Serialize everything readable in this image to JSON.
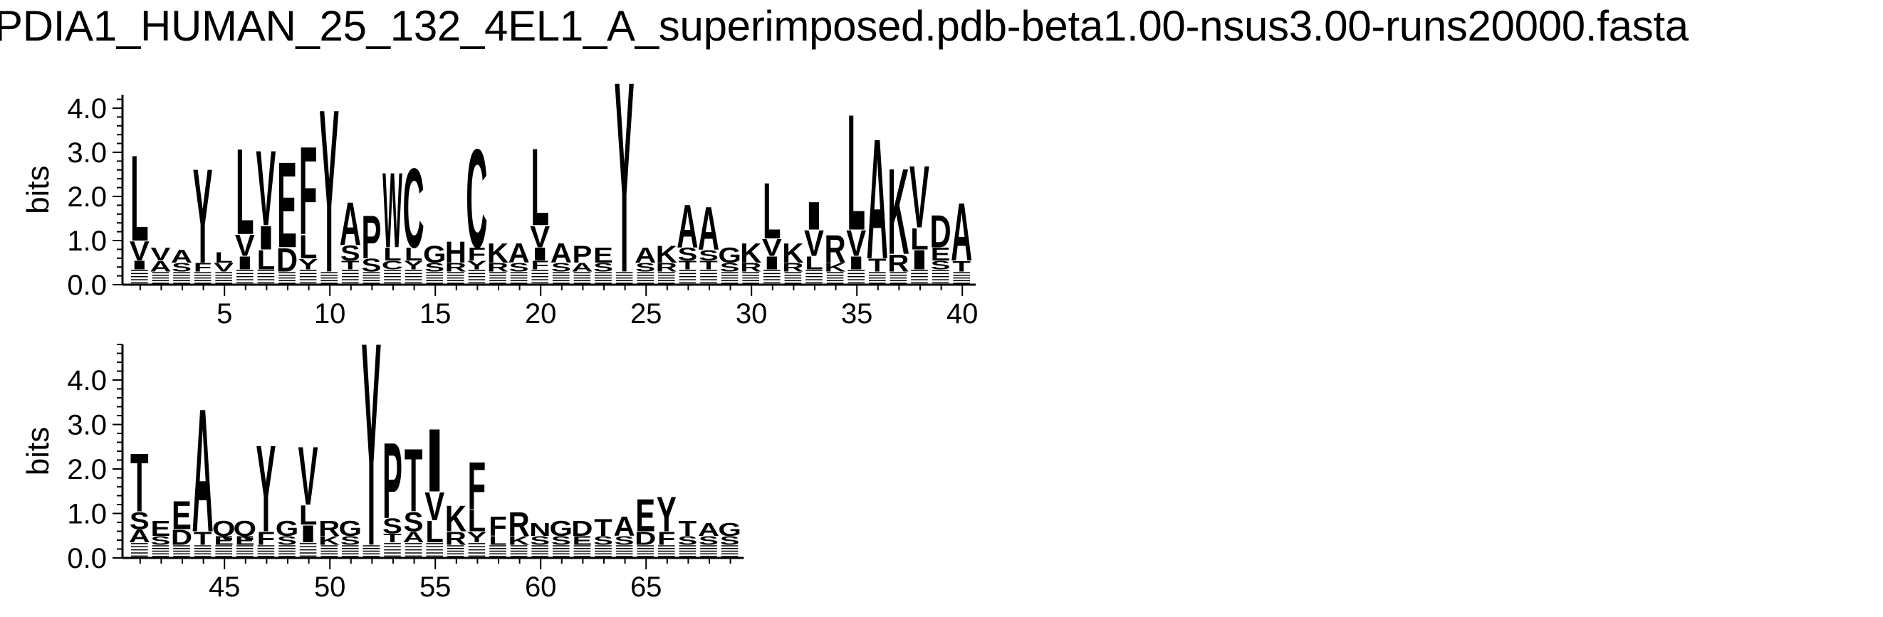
{
  "title": "PDIA1_HUMAN_25_132_4EL1_A_superimposed.pdb-beta1.00-nsus3.00-runs20000.fasta",
  "chart_data": [
    {
      "type": "sequence-logo",
      "ylabel": "bits",
      "ylim": [
        0,
        4.3
      ],
      "yticks": [
        "0.0",
        "1.0",
        "2.0",
        "3.0",
        "4.0"
      ],
      "xlim": [
        1,
        40
      ],
      "xticks": [
        5,
        10,
        15,
        20,
        25,
        30,
        35,
        40
      ],
      "positions": [
        {
          "pos": 1,
          "letters": [
            [
              "L",
              2.0
            ],
            [
              "V",
              0.45
            ],
            [
              "I",
              0.2
            ]
          ]
        },
        {
          "pos": 2,
          "letters": [
            [
              "V",
              0.3
            ],
            [
              "A",
              0.25
            ]
          ]
        },
        {
          "pos": 3,
          "letters": [
            [
              "A",
              0.3
            ],
            [
              "S",
              0.2
            ]
          ]
        },
        {
          "pos": 4,
          "letters": [
            [
              "Y",
              2.2
            ],
            [
              "F",
              0.2
            ]
          ]
        },
        {
          "pos": 5,
          "letters": [
            [
              "L",
              0.25
            ],
            [
              "V",
              0.2
            ]
          ]
        },
        {
          "pos": 6,
          "letters": [
            [
              "L",
              2.0
            ],
            [
              "V",
              0.5
            ],
            [
              "I",
              0.3
            ]
          ]
        },
        {
          "pos": 7,
          "letters": [
            [
              "V",
              1.75
            ],
            [
              "I",
              0.55
            ],
            [
              "L",
              0.45
            ]
          ]
        },
        {
          "pos": 8,
          "letters": [
            [
              "E",
              2.0
            ],
            [
              "D",
              0.55
            ]
          ]
        },
        {
          "pos": 9,
          "letters": [
            [
              "F",
              2.05
            ],
            [
              "L",
              0.55
            ],
            [
              "Y",
              0.25
            ]
          ]
        },
        {
          "pos": 10,
          "letters": [
            [
              "Y",
              3.8
            ]
          ]
        },
        {
          "pos": 11,
          "letters": [
            [
              "A",
              1.0
            ],
            [
              "S",
              0.35
            ],
            [
              "T",
              0.2
            ]
          ]
        },
        {
          "pos": 12,
          "letters": [
            [
              "P",
              1.0
            ],
            [
              "S",
              0.3
            ]
          ]
        },
        {
          "pos": 13,
          "letters": [
            [
              "W",
              1.75
            ],
            [
              "L",
              0.3
            ],
            [
              "C",
              0.2
            ]
          ]
        },
        {
          "pos": 14,
          "letters": [
            [
              "C",
              1.85
            ],
            [
              "L",
              0.3
            ],
            [
              "Y",
              0.2
            ]
          ]
        },
        {
          "pos": 15,
          "letters": [
            [
              "G",
              0.4
            ],
            [
              "S",
              0.2
            ]
          ]
        },
        {
          "pos": 16,
          "letters": [
            [
              "H",
              0.5
            ],
            [
              "R",
              0.2
            ]
          ]
        },
        {
          "pos": 17,
          "letters": [
            [
              "C",
              2.3
            ],
            [
              "F",
              0.3
            ],
            [
              "Y",
              0.2
            ]
          ]
        },
        {
          "pos": 18,
          "letters": [
            [
              "K",
              0.45
            ],
            [
              "R",
              0.2
            ]
          ]
        },
        {
          "pos": 19,
          "letters": [
            [
              "A",
              0.45
            ],
            [
              "S",
              0.2
            ]
          ]
        },
        {
          "pos": 20,
          "letters": [
            [
              "L",
              1.8
            ],
            [
              "V",
              0.5
            ],
            [
              "I",
              0.3
            ],
            [
              "F",
              0.2
            ]
          ]
        },
        {
          "pos": 21,
          "letters": [
            [
              "A",
              0.45
            ],
            [
              "S",
              0.2
            ]
          ]
        },
        {
          "pos": 22,
          "letters": [
            [
              "P",
              0.4
            ],
            [
              "A",
              0.2
            ]
          ]
        },
        {
          "pos": 23,
          "letters": [
            [
              "E",
              0.35
            ],
            [
              "S",
              0.2
            ]
          ]
        },
        {
          "pos": 24,
          "letters": [
            [
              "Y",
              4.45
            ]
          ]
        },
        {
          "pos": 25,
          "letters": [
            [
              "A",
              0.35
            ],
            [
              "S",
              0.2
            ]
          ]
        },
        {
          "pos": 26,
          "letters": [
            [
              "K",
              0.4
            ],
            [
              "R",
              0.2
            ]
          ]
        },
        {
          "pos": 27,
          "letters": [
            [
              "A",
              1.0
            ],
            [
              "S",
              0.3
            ],
            [
              "T",
              0.2
            ]
          ]
        },
        {
          "pos": 28,
          "letters": [
            [
              "A",
              1.0
            ],
            [
              "S",
              0.25
            ],
            [
              "T",
              0.2
            ]
          ]
        },
        {
          "pos": 29,
          "letters": [
            [
              "G",
              0.35
            ],
            [
              "S",
              0.2
            ]
          ]
        },
        {
          "pos": 30,
          "letters": [
            [
              "K",
              0.45
            ],
            [
              "R",
              0.2
            ]
          ]
        },
        {
          "pos": 31,
          "letters": [
            [
              "L",
              1.3
            ],
            [
              "V",
              0.4
            ],
            [
              "I",
              0.3
            ]
          ]
        },
        {
          "pos": 32,
          "letters": [
            [
              "K",
              0.45
            ],
            [
              "R",
              0.2
            ]
          ]
        },
        {
          "pos": 33,
          "letters": [
            [
              "I",
              0.65
            ],
            [
              "V",
              0.6
            ],
            [
              "L",
              0.3
            ]
          ]
        },
        {
          "pos": 34,
          "letters": [
            [
              "R",
              0.65
            ],
            [
              "K",
              0.2
            ]
          ]
        },
        {
          "pos": 35,
          "letters": [
            [
              "L",
              2.7
            ],
            [
              "V",
              0.6
            ],
            [
              "I",
              0.3
            ]
          ]
        },
        {
          "pos": 36,
          "letters": [
            [
              "A",
              2.8
            ],
            [
              "T",
              0.3
            ]
          ]
        },
        {
          "pos": 37,
          "letters": [
            [
              "K",
              2.0
            ],
            [
              "R",
              0.4
            ]
          ]
        },
        {
          "pos": 38,
          "letters": [
            [
              "V",
              1.45
            ],
            [
              "I",
              0.45
            ],
            [
              "L",
              0.5
            ]
          ]
        },
        {
          "pos": 39,
          "letters": [
            [
              "D",
              0.75
            ],
            [
              "E",
              0.3
            ],
            [
              "S",
              0.2
            ]
          ]
        },
        {
          "pos": 40,
          "letters": [
            [
              "A",
              1.35
            ],
            [
              "T",
              0.25
            ]
          ]
        }
      ]
    },
    {
      "type": "sequence-logo",
      "ylabel": "bits",
      "ylim": [
        0,
        4.8
      ],
      "yticks": [
        "0.0",
        "1.0",
        "2.0",
        "3.0",
        "4.0"
      ],
      "xlim": [
        41,
        69
      ],
      "xticks": [
        45,
        50,
        55,
        60,
        65
      ],
      "positions": [
        {
          "pos": 41,
          "letters": [
            [
              "T",
              1.35
            ],
            [
              "S",
              0.4
            ],
            [
              "A",
              0.3
            ]
          ]
        },
        {
          "pos": 42,
          "letters": [
            [
              "E",
              0.35
            ],
            [
              "S",
              0.2
            ]
          ]
        },
        {
          "pos": 43,
          "letters": [
            [
              "E",
              0.65
            ],
            [
              "D",
              0.35
            ]
          ]
        },
        {
          "pos": 44,
          "letters": [
            [
              "A",
              2.85
            ],
            [
              "T",
              0.3
            ]
          ]
        },
        {
          "pos": 45,
          "letters": [
            [
              "Q",
              0.35
            ],
            [
              "E",
              0.2
            ]
          ]
        },
        {
          "pos": 46,
          "letters": [
            [
              "Q",
              0.35
            ],
            [
              "E",
              0.2
            ]
          ]
        },
        {
          "pos": 47,
          "letters": [
            [
              "Y",
              2.0
            ],
            [
              "F",
              0.3
            ]
          ]
        },
        {
          "pos": 48,
          "letters": [
            [
              "G",
              0.35
            ],
            [
              "S",
              0.2
            ]
          ]
        },
        {
          "pos": 49,
          "letters": [
            [
              "V",
              1.35
            ],
            [
              "I",
              0.4
            ],
            [
              "L",
              0.45
            ]
          ]
        },
        {
          "pos": 50,
          "letters": [
            [
              "R",
              0.35
            ],
            [
              "K",
              0.2
            ]
          ]
        },
        {
          "pos": 51,
          "letters": [
            [
              "G",
              0.35
            ],
            [
              "S",
              0.2
            ]
          ]
        },
        {
          "pos": 52,
          "letters": [
            [
              "Y",
              4.7
            ]
          ]
        },
        {
          "pos": 53,
          "letters": [
            [
              "P",
              1.75
            ],
            [
              "S",
              0.35
            ],
            [
              "T",
              0.2
            ]
          ]
        },
        {
          "pos": 54,
          "letters": [
            [
              "T",
              1.45
            ],
            [
              "S",
              0.45
            ],
            [
              "A",
              0.25
            ]
          ]
        },
        {
          "pos": 55,
          "letters": [
            [
              "I",
              1.45
            ],
            [
              "V",
              0.65
            ],
            [
              "L",
              0.5
            ]
          ]
        },
        {
          "pos": 56,
          "letters": [
            [
              "K",
              0.6
            ],
            [
              "R",
              0.3
            ]
          ]
        },
        {
          "pos": 57,
          "letters": [
            [
              "F",
              1.1
            ],
            [
              "L",
              0.5
            ],
            [
              "Y",
              0.25
            ]
          ]
        },
        {
          "pos": 58,
          "letters": [
            [
              "F",
              0.45
            ],
            [
              "L",
              0.2
            ]
          ]
        },
        {
          "pos": 59,
          "letters": [
            [
              "R",
              0.55
            ],
            [
              "K",
              0.2
            ]
          ]
        },
        {
          "pos": 60,
          "letters": [
            [
              "N",
              0.3
            ],
            [
              "S",
              0.2
            ]
          ]
        },
        {
          "pos": 61,
          "letters": [
            [
              "G",
              0.35
            ],
            [
              "S",
              0.2
            ]
          ]
        },
        {
          "pos": 62,
          "letters": [
            [
              "D",
              0.35
            ],
            [
              "E",
              0.2
            ]
          ]
        },
        {
          "pos": 63,
          "letters": [
            [
              "T",
              0.4
            ],
            [
              "S",
              0.2
            ]
          ]
        },
        {
          "pos": 64,
          "letters": [
            [
              "A",
              0.45
            ],
            [
              "S",
              0.2
            ]
          ]
        },
        {
          "pos": 65,
          "letters": [
            [
              "E",
              0.75
            ],
            [
              "D",
              0.3
            ]
          ]
        },
        {
          "pos": 66,
          "letters": [
            [
              "Y",
              0.8
            ],
            [
              "F",
              0.3
            ]
          ]
        },
        {
          "pos": 67,
          "letters": [
            [
              "T",
              0.35
            ],
            [
              "S",
              0.2
            ]
          ]
        },
        {
          "pos": 68,
          "letters": [
            [
              "A",
              0.3
            ],
            [
              "S",
              0.2
            ]
          ]
        },
        {
          "pos": 69,
          "letters": [
            [
              "G",
              0.3
            ],
            [
              "S",
              0.2
            ]
          ]
        }
      ]
    }
  ]
}
